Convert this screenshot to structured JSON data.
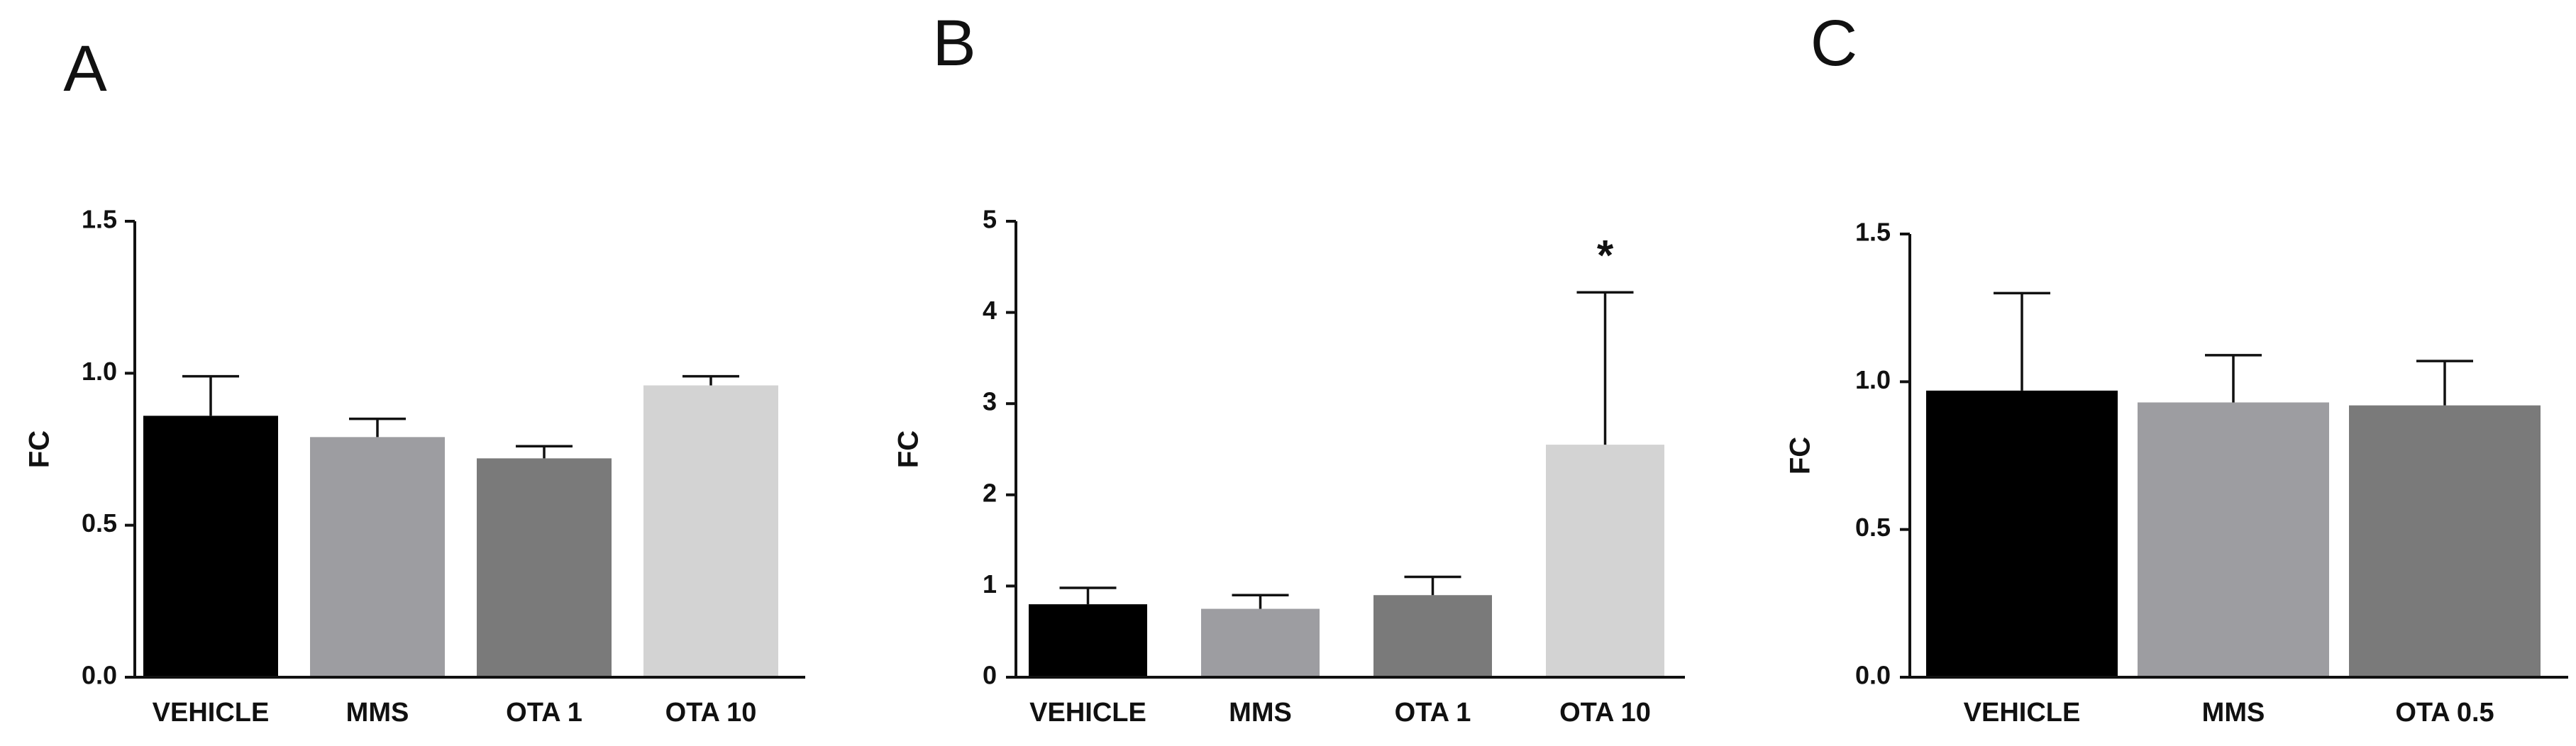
{
  "chart_data": [
    {
      "type": "bar",
      "panel": "A",
      "title": "",
      "xlabel": "",
      "ylabel": "FC",
      "ylim": [
        0,
        1.5
      ],
      "yticks": [
        "0.0",
        "0.5",
        "1.0",
        "1.5"
      ],
      "yticks_values": [
        0,
        0.5,
        1.0,
        1.5
      ],
      "categories": [
        "VEHICLE",
        "MMS",
        "OTA 1",
        "OTA 10"
      ],
      "values": [
        0.86,
        0.79,
        0.72,
        0.96
      ],
      "errors": [
        0.13,
        0.06,
        0.04,
        0.03
      ],
      "colors": [
        "#000000",
        "#9d9da1",
        "#7a7a7a",
        "#d3d3d3"
      ],
      "annotations": [
        "",
        "",
        "",
        ""
      ],
      "grid": false,
      "legend": "none"
    },
    {
      "type": "bar",
      "panel": "B",
      "title": "",
      "xlabel": "",
      "ylabel": "FC",
      "ylim": [
        0,
        5
      ],
      "yticks": [
        "0",
        "1",
        "2",
        "3",
        "4",
        "5"
      ],
      "yticks_values": [
        0,
        1,
        2,
        3,
        4,
        5
      ],
      "categories": [
        "VEHICLE",
        "MMS",
        "OTA 1",
        "OTA 10"
      ],
      "values": [
        0.8,
        0.75,
        0.9,
        2.55
      ],
      "errors": [
        0.18,
        0.15,
        0.2,
        1.67
      ],
      "colors": [
        "#000000",
        "#9d9da1",
        "#7a7a7a",
        "#d3d3d3"
      ],
      "annotations": [
        "",
        "",
        "",
        "*"
      ],
      "grid": false,
      "legend": "none"
    },
    {
      "type": "bar",
      "panel": "C",
      "title": "",
      "xlabel": "",
      "ylabel": "FC",
      "ylim": [
        0,
        1.5
      ],
      "yticks": [
        "0.0",
        "0.5",
        "1.0",
        "1.5"
      ],
      "yticks_values": [
        0,
        0.5,
        1.0,
        1.5
      ],
      "categories": [
        "VEHICLE",
        "MMS",
        "OTA 0.5"
      ],
      "values": [
        0.97,
        0.93,
        0.92
      ],
      "errors": [
        0.33,
        0.16,
        0.15
      ],
      "colors": [
        "#000000",
        "#9d9da1",
        "#7a7a7a"
      ],
      "annotations": [
        "",
        "",
        ""
      ],
      "grid": false,
      "legend": "none"
    }
  ]
}
